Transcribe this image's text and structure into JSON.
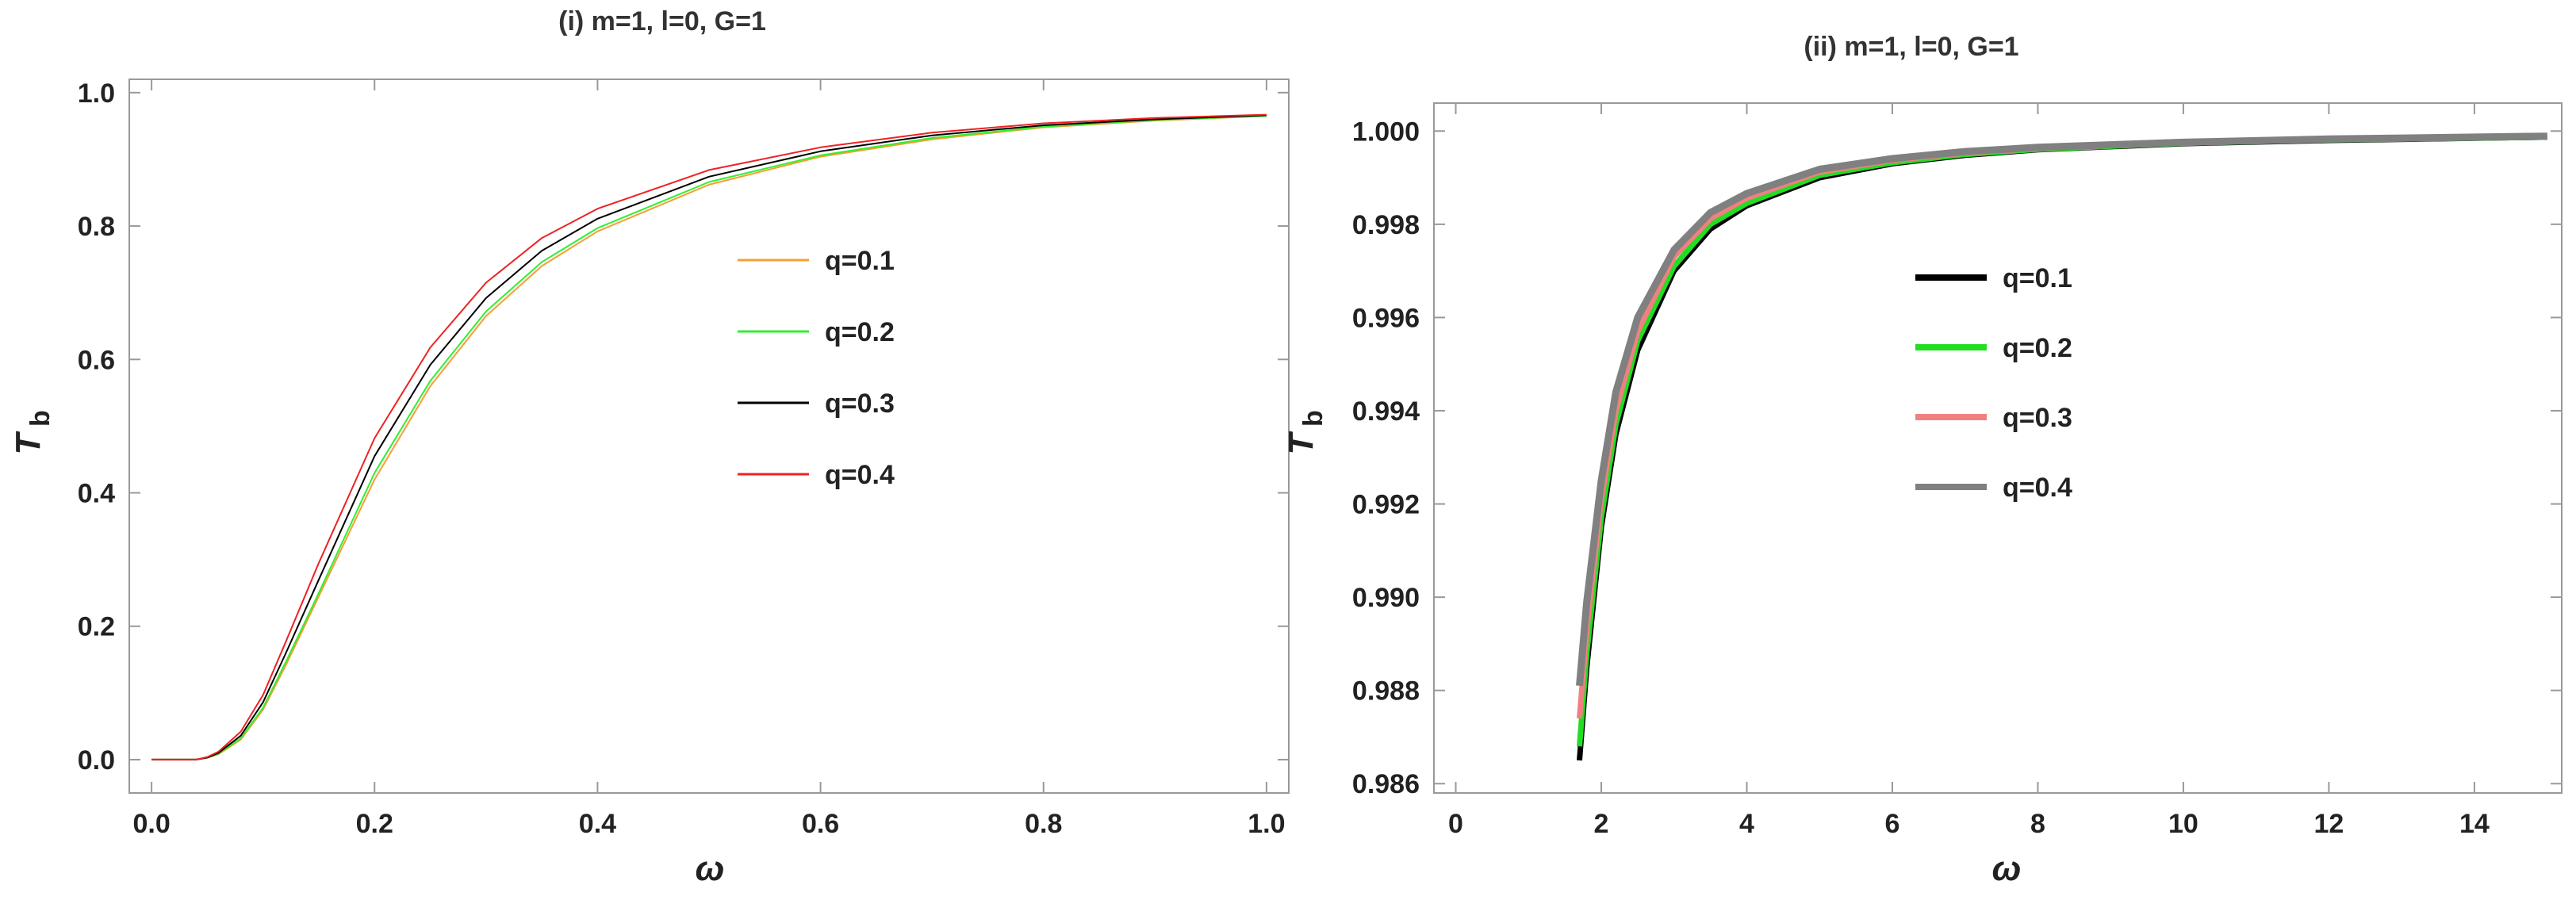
{
  "chart_data": [
    {
      "type": "line",
      "title": "(i) m=1, l=0, G=1",
      "xlabel": "ω",
      "ylabel": "T",
      "ylabel_sub": "b",
      "xlim": [
        -0.02,
        1.02
      ],
      "ylim": [
        -0.05,
        1.02
      ],
      "xticks": [
        0.0,
        0.2,
        0.4,
        0.6,
        0.8,
        1.0
      ],
      "xtick_labels": [
        "0.0",
        "0.2",
        "0.4",
        "0.6",
        "0.8",
        "1.0"
      ],
      "yticks": [
        0.0,
        0.2,
        0.4,
        0.6,
        0.8,
        1.0
      ],
      "ytick_labels": [
        "0.0",
        "0.2",
        "0.4",
        "0.6",
        "0.8",
        "1.0"
      ],
      "grid": false,
      "legend_position": "center-right",
      "series": [
        {
          "name": "q=0.1",
          "color": "#f5a030",
          "width": 2,
          "x": [
            0.0,
            0.04,
            0.05,
            0.06,
            0.08,
            0.1,
            0.12,
            0.15,
            0.2,
            0.25,
            0.3,
            0.35,
            0.4,
            0.5,
            0.6,
            0.7,
            0.8,
            0.9,
            1.0
          ],
          "y": [
            0.0,
            0.0,
            0.003,
            0.008,
            0.03,
            0.075,
            0.14,
            0.245,
            0.42,
            0.56,
            0.665,
            0.74,
            0.792,
            0.862,
            0.904,
            0.93,
            0.948,
            0.958,
            0.965
          ]
        },
        {
          "name": "q=0.2",
          "color": "#33ee33",
          "width": 2,
          "x": [
            0.0,
            0.04,
            0.05,
            0.06,
            0.08,
            0.1,
            0.12,
            0.15,
            0.2,
            0.25,
            0.3,
            0.35,
            0.4,
            0.5,
            0.6,
            0.7,
            0.8,
            0.9,
            1.0
          ],
          "y": [
            0.0,
            0.0,
            0.003,
            0.009,
            0.032,
            0.078,
            0.145,
            0.25,
            0.43,
            0.568,
            0.672,
            0.746,
            0.797,
            0.866,
            0.906,
            0.932,
            0.949,
            0.959,
            0.965
          ]
        },
        {
          "name": "q=0.3",
          "color": "#000000",
          "width": 2,
          "x": [
            0.0,
            0.04,
            0.05,
            0.06,
            0.08,
            0.1,
            0.12,
            0.15,
            0.2,
            0.25,
            0.3,
            0.35,
            0.4,
            0.5,
            0.6,
            0.7,
            0.8,
            0.9,
            1.0
          ],
          "y": [
            0.0,
            0.0,
            0.003,
            0.01,
            0.036,
            0.086,
            0.158,
            0.27,
            0.455,
            0.592,
            0.692,
            0.763,
            0.811,
            0.874,
            0.912,
            0.936,
            0.951,
            0.96,
            0.966
          ]
        },
        {
          "name": "q=0.4",
          "color": "#ee2222",
          "width": 2,
          "x": [
            0.0,
            0.04,
            0.05,
            0.06,
            0.08,
            0.1,
            0.12,
            0.15,
            0.2,
            0.25,
            0.3,
            0.35,
            0.4,
            0.5,
            0.6,
            0.7,
            0.8,
            0.9,
            1.0
          ],
          "y": [
            0.0,
            0.0,
            0.004,
            0.012,
            0.042,
            0.097,
            0.175,
            0.295,
            0.482,
            0.618,
            0.715,
            0.782,
            0.826,
            0.884,
            0.918,
            0.94,
            0.954,
            0.962,
            0.967
          ]
        }
      ]
    },
    {
      "type": "line",
      "title": "(ii) m=1, l=0, G=1",
      "xlabel": "ω",
      "ylabel": "T",
      "ylabel_sub": "b",
      "xlim": [
        -0.3,
        15.2
      ],
      "ylim": [
        0.9858,
        1.0006
      ],
      "xticks": [
        0,
        2,
        4,
        6,
        8,
        10,
        12,
        14
      ],
      "xtick_labels": [
        "0",
        "2",
        "4",
        "6",
        "8",
        "10",
        "12",
        "14"
      ],
      "yticks": [
        0.986,
        0.988,
        0.99,
        0.992,
        0.994,
        0.996,
        0.998,
        1.0
      ],
      "ytick_labels": [
        "0.986",
        "0.988",
        "0.990",
        "0.992",
        "0.994",
        "0.996",
        "0.998",
        "1.000"
      ],
      "grid": false,
      "legend_position": "center",
      "series": [
        {
          "name": "q=0.1",
          "color": "#000000",
          "width": 7,
          "x": [
            1.7,
            1.8,
            2.0,
            2.2,
            2.5,
            3.0,
            3.5,
            4.0,
            5.0,
            6.0,
            7.0,
            8.0,
            10.0,
            12.0,
            15.0
          ],
          "y": [
            0.9865,
            0.9885,
            0.9915,
            0.9935,
            0.9953,
            0.997,
            0.9979,
            0.9984,
            0.999,
            0.9993,
            0.99948,
            0.9996,
            0.99973,
            0.9998,
            0.99987
          ]
        },
        {
          "name": "q=0.2",
          "color": "#22dd22",
          "width": 7,
          "x": [
            1.7,
            1.8,
            2.0,
            2.2,
            2.5,
            3.0,
            3.5,
            4.0,
            5.0,
            6.0,
            7.0,
            8.0,
            10.0,
            12.0,
            15.0
          ],
          "y": [
            0.9868,
            0.9888,
            0.9917,
            0.9937,
            0.9955,
            0.9971,
            0.998,
            0.99845,
            0.99905,
            0.99932,
            0.9995,
            0.99961,
            0.99974,
            0.99981,
            0.99987
          ]
        },
        {
          "name": "q=0.3",
          "color": "#f08080",
          "width": 7,
          "x": [
            1.7,
            1.8,
            2.0,
            2.2,
            2.5,
            3.0,
            3.5,
            4.0,
            5.0,
            6.0,
            7.0,
            8.0,
            10.0,
            12.0,
            15.0
          ],
          "y": [
            0.9874,
            0.9893,
            0.9921,
            0.994,
            0.9957,
            0.9973,
            0.99812,
            0.99856,
            0.99912,
            0.99937,
            0.99953,
            0.99963,
            0.99975,
            0.99982,
            0.99988
          ]
        },
        {
          "name": "q=0.4",
          "color": "#808080",
          "width": 9,
          "x": [
            1.7,
            1.8,
            2.0,
            2.2,
            2.5,
            3.0,
            3.5,
            4.0,
            5.0,
            6.0,
            7.0,
            8.0,
            10.0,
            12.0,
            15.0
          ],
          "y": [
            0.9881,
            0.9899,
            0.9925,
            0.9944,
            0.996,
            0.99745,
            0.99825,
            0.99866,
            0.99918,
            0.99941,
            0.99956,
            0.99965,
            0.99976,
            0.99983,
            0.99989
          ]
        }
      ]
    }
  ]
}
